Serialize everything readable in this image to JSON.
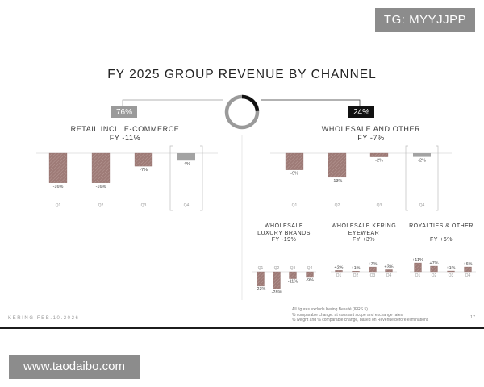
{
  "badges": {
    "tg": "TG: MYYJJPP",
    "site": "www.taodaibo.com"
  },
  "slide": {
    "title": "FY 2025 GROUP REVENUE BY CHANNEL",
    "footer_left": "KERING  FEB.10.2026",
    "page_number": "17",
    "footnotes": [
      "All figures exclude Kering Beauté (IFRS 5)",
      "% comparable change: at constant scope and exchange rates",
      "% weight and % comparable change, based on Revenue before eliminations"
    ]
  },
  "chart_data": [
    {
      "type": "donut",
      "series": [
        {
          "name": "Retail incl. e-commerce",
          "value": 76,
          "label": "76%",
          "color": "#9a9a9a"
        },
        {
          "name": "Wholesale and other",
          "value": 24,
          "label": "24%",
          "color": "#111111"
        }
      ]
    },
    {
      "type": "bar",
      "title": "RETAIL INCL. E-COMMERCE",
      "subtitle": "FY -11%",
      "categories": [
        "Q1",
        "Q2",
        "Q3",
        "Q4"
      ],
      "values": [
        -16,
        -16,
        -7,
        -4
      ],
      "labels": [
        "-16%",
        "-16%",
        "-7%",
        "-4%"
      ],
      "highlight_index": 3
    },
    {
      "type": "bar",
      "title": "WHOLESALE AND OTHER",
      "subtitle": "FY -7%",
      "categories": [
        "Q1",
        "Q2",
        "Q3",
        "Q4"
      ],
      "values": [
        -9,
        -13,
        -2,
        -2
      ],
      "labels": [
        "-9%",
        "-13%",
        "-2%",
        "-2%"
      ],
      "highlight_index": 3
    },
    {
      "type": "bar",
      "title": "WHOLESALE LUXURY BRANDS",
      "subtitle": "FY -19%",
      "categories": [
        "Q1",
        "Q2",
        "Q3",
        "Q4"
      ],
      "values": [
        -23,
        -28,
        -11,
        -9
      ],
      "labels": [
        "-23%",
        "-28%",
        "-11%",
        "-9%"
      ]
    },
    {
      "type": "bar",
      "title": "WHOLESALE KERING EYEWEAR",
      "subtitle": "FY +3%",
      "categories": [
        "Q1",
        "Q2",
        "Q3",
        "Q4"
      ],
      "values": [
        2,
        1,
        7,
        3
      ],
      "labels": [
        "+2%",
        "+1%",
        "+7%",
        "+3%"
      ]
    },
    {
      "type": "bar",
      "title": "ROYALTIES & OTHER",
      "subtitle": "FY +6%",
      "categories": [
        "Q1",
        "Q2",
        "Q3",
        "Q4"
      ],
      "values": [
        11,
        7,
        1,
        6
      ],
      "labels": [
        "+11%",
        "+7%",
        "+1%",
        "+6%"
      ]
    }
  ],
  "colors": {
    "bar_fill": "#9e7b77",
    "bar_hatch": "#b89a96",
    "highlight_bar": "#a3a3a3",
    "axis": "#c8c8c8"
  }
}
